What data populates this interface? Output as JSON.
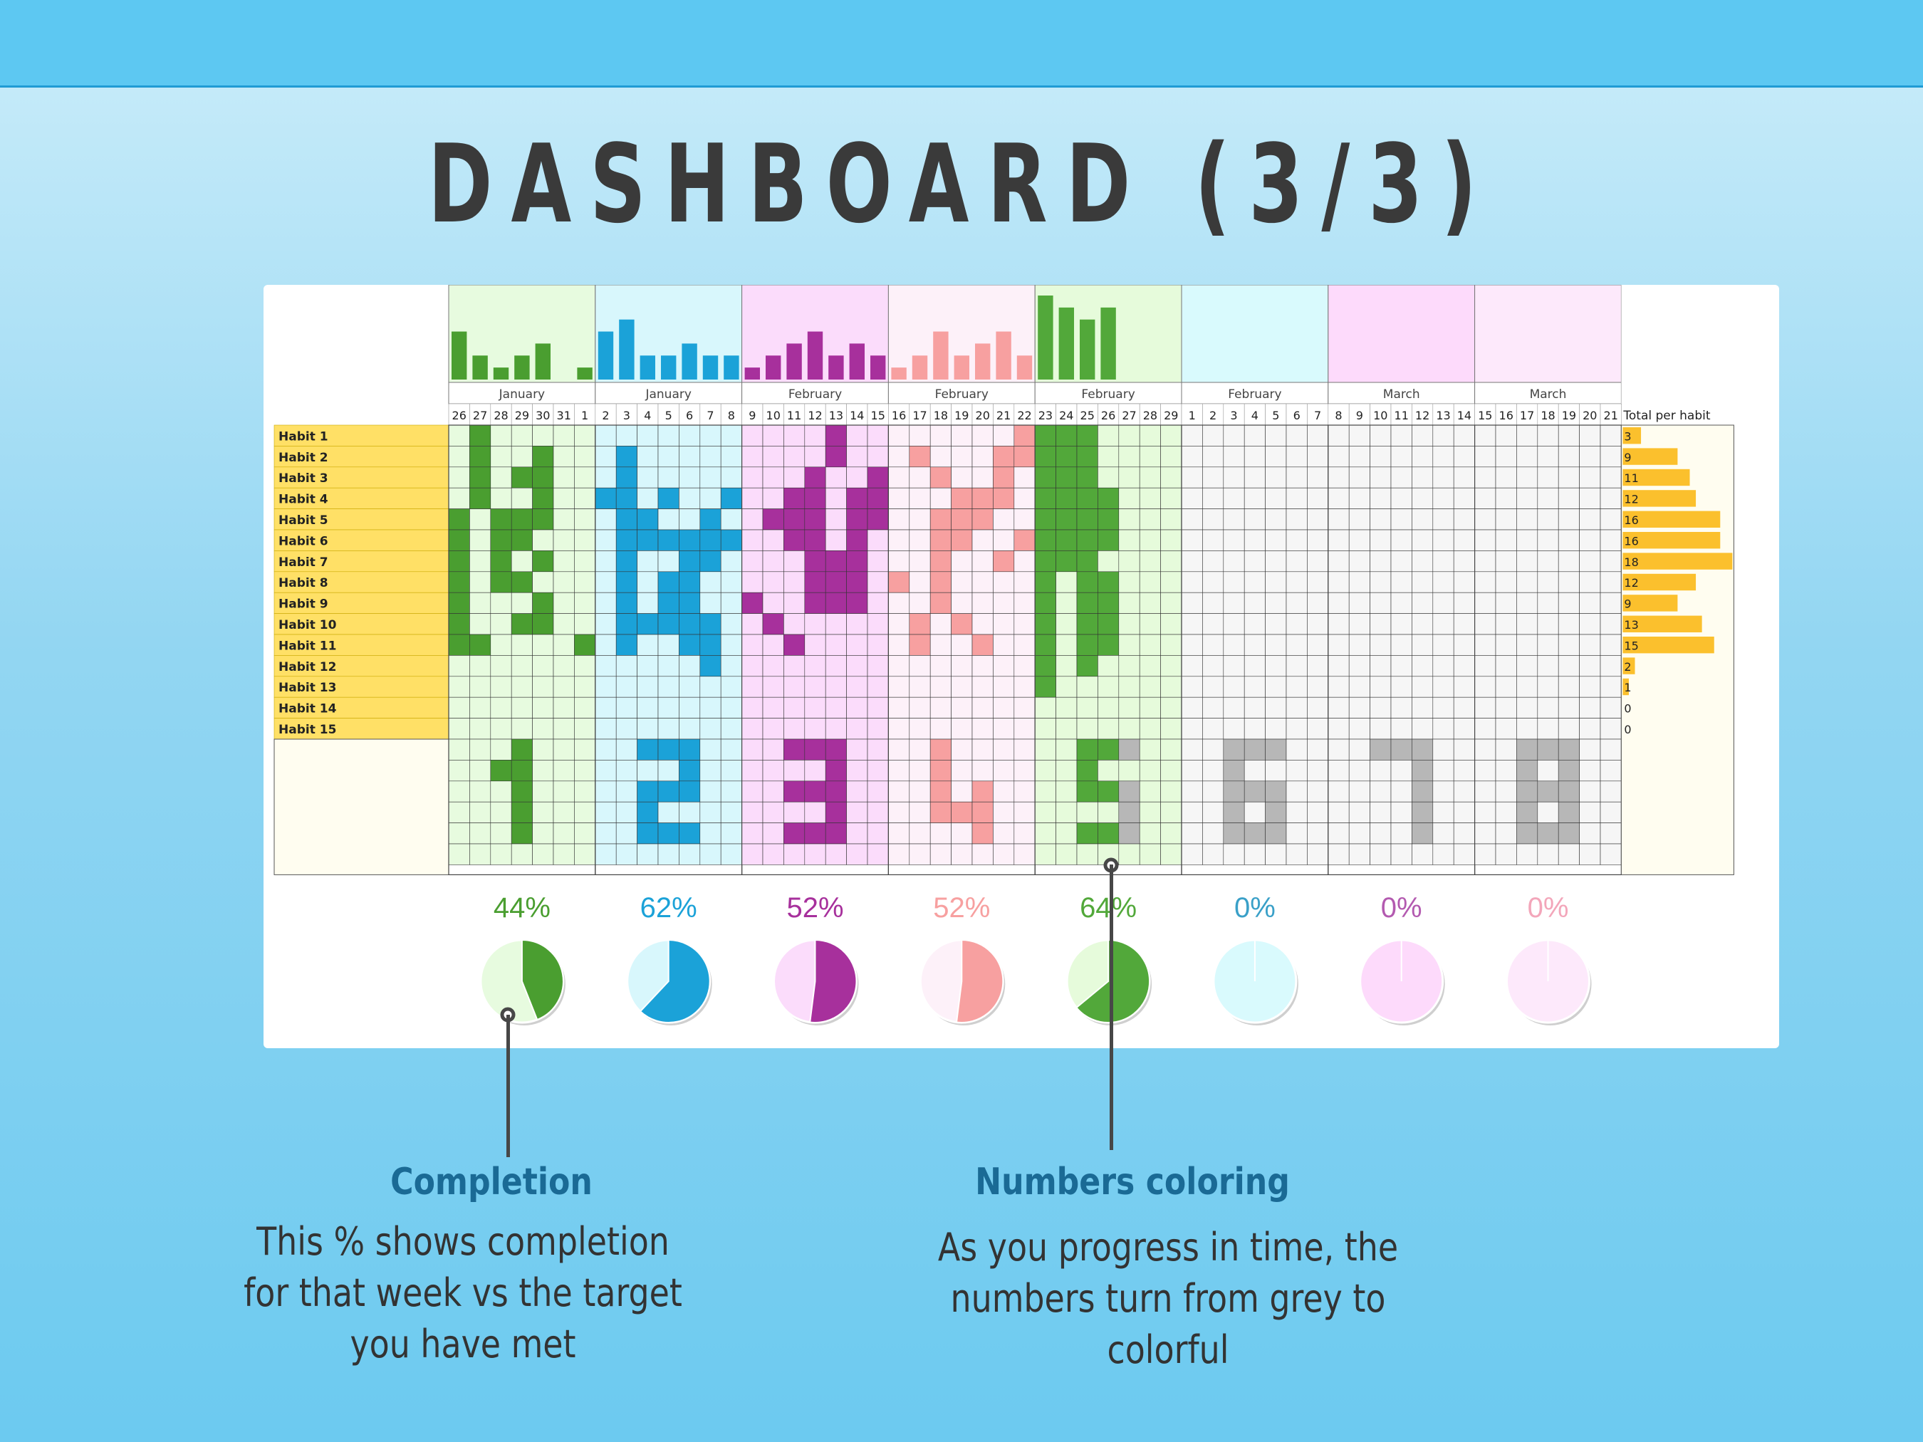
{
  "page": {
    "title": "DASHBOARD (3/3)"
  },
  "chart_data": {
    "type": "table",
    "weeks": [
      {
        "month": "January",
        "days": [
          "26",
          "27",
          "28",
          "29",
          "30",
          "31",
          "1"
        ],
        "color": "#4a9e30",
        "tint": "#e7fbdf",
        "daily": [
          4,
          2,
          1,
          2,
          3,
          0,
          1
        ],
        "completion": "44%",
        "completion_value": 0.44,
        "number": 1,
        "state": "colored"
      },
      {
        "month": "January",
        "days": [
          "2",
          "3",
          "4",
          "5",
          "6",
          "7",
          "8"
        ],
        "color": "#1ba2d8",
        "tint": "#d8f7fc",
        "daily": [
          4,
          5,
          2,
          2,
          3,
          2,
          2
        ],
        "completion": "62%",
        "completion_value": 0.62,
        "number": 2,
        "state": "colored"
      },
      {
        "month": "February",
        "days": [
          "9",
          "10",
          "11",
          "12",
          "13",
          "14",
          "15"
        ],
        "color": "#a7309c",
        "tint": "#fbdcfb",
        "daily": [
          1,
          2,
          3,
          4,
          2,
          3,
          2
        ],
        "completion": "52%",
        "completion_value": 0.52,
        "number": 3,
        "state": "colored"
      },
      {
        "month": "February",
        "days": [
          "16",
          "17",
          "18",
          "19",
          "20",
          "21",
          "22"
        ],
        "color": "#f7a0a0",
        "tint": "#fdf1f9",
        "daily": [
          1,
          2,
          4,
          2,
          3,
          4,
          2
        ],
        "completion": "52%",
        "completion_value": 0.52,
        "number": 4,
        "state": "colored"
      },
      {
        "month": "February",
        "days": [
          "23",
          "24",
          "25",
          "26",
          "27",
          "28",
          "29"
        ],
        "color": "#52a83a",
        "tint": "#e6fbdb",
        "daily": [
          7,
          6,
          5,
          6,
          0,
          0,
          0
        ],
        "completion": "64%",
        "completion_value": 0.64,
        "number": 5,
        "state": "partial"
      },
      {
        "month": "February",
        "days": [
          "1",
          "2",
          "3",
          "4",
          "5",
          "6",
          "7"
        ],
        "color": "#3aa0c8",
        "tint": "#d9fafd",
        "daily": [
          0,
          0,
          0,
          0,
          0,
          0,
          0
        ],
        "completion": "0%",
        "completion_value": 0,
        "number": 6,
        "state": "grey"
      },
      {
        "month": "March",
        "days": [
          "8",
          "9",
          "10",
          "11",
          "12",
          "13",
          "14"
        ],
        "color": "#b35ab0",
        "tint": "#fddafb",
        "daily": [
          0,
          0,
          0,
          0,
          0,
          0,
          0
        ],
        "completion": "0%",
        "completion_value": 0,
        "number": 7,
        "state": "grey"
      },
      {
        "month": "March",
        "days": [
          "15",
          "16",
          "17",
          "18",
          "19",
          "20",
          "21"
        ],
        "color": "#f3a6ba",
        "tint": "#fde9fb",
        "daily": [
          0,
          0,
          0,
          0,
          0,
          0,
          0
        ],
        "completion": "0%",
        "completion_value": 0,
        "number": 8,
        "state": "grey"
      }
    ],
    "habits": [
      {
        "label": "Habit 1",
        "total": 3
      },
      {
        "label": "Habit 2",
        "total": 9
      },
      {
        "label": "Habit 3",
        "total": 11
      },
      {
        "label": "Habit 4",
        "total": 12
      },
      {
        "label": "Habit 5",
        "total": 16
      },
      {
        "label": "Habit 6",
        "total": 16
      },
      {
        "label": "Habit 7",
        "total": 18
      },
      {
        "label": "Habit 8",
        "total": 12
      },
      {
        "label": "Habit 9",
        "total": 9
      },
      {
        "label": "Habit 10",
        "total": 13
      },
      {
        "label": "Habit 11",
        "total": 15
      },
      {
        "label": "Habit 12",
        "total": 2
      },
      {
        "label": "Habit 13",
        "total": 1
      },
      {
        "label": "Habit 14",
        "total": 0
      },
      {
        "label": "Habit 15",
        "total": 0
      }
    ],
    "total_header": "Total per habit",
    "total_bar_color": "#fbc02d",
    "habit_label_fill": "#ffe066",
    "grey_number_color": "#b7b7b7"
  },
  "callouts": {
    "completion": {
      "title": "Completion",
      "lines": [
        "This % shows completion",
        "for that week vs the target",
        "you have met"
      ]
    },
    "numbers": {
      "title": "Numbers coloring",
      "lines": [
        "As you progress in time, the",
        "numbers turn from grey to",
        "colorful"
      ]
    }
  }
}
